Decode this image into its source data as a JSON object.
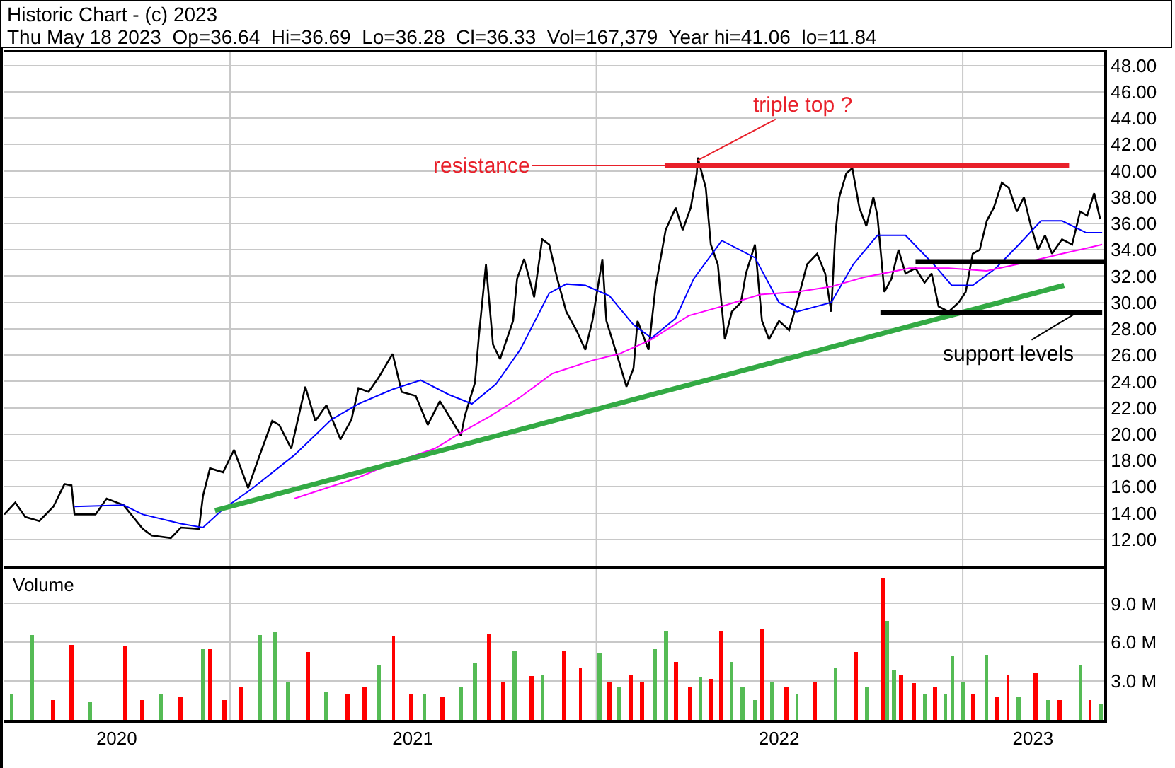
{
  "chart_data": [
    {
      "type": "line",
      "title": "Historic Chart - (c) 2023",
      "subtitle": "Thu May 18 2023  Op=36.64  Hi=36.69  Lo=36.28  Cl=36.33  Vol=167,379  Year hi=41.06  lo=11.84",
      "x": [
        "2020-05-21",
        "2020-06-01",
        "2020-06-11",
        "2020-06-25",
        "2020-07-09",
        "2020-07-20",
        "2020-07-27",
        "2020-07-30",
        "2020-08-20",
        "2020-08-31",
        "2020-09-17",
        "2020-10-06",
        "2020-10-15",
        "2020-11-03",
        "2020-11-13",
        "2020-12-01",
        "2020-12-05",
        "2020-12-12",
        "2020-12-25",
        "2021-01-05",
        "2021-01-19",
        "2021-01-31",
        "2021-02-12",
        "2021-02-19",
        "2021-03-03",
        "2021-03-17",
        "2021-03-27",
        "2021-04-07",
        "2021-04-21",
        "2021-05-02",
        "2021-05-09",
        "2021-05-19",
        "2021-05-29",
        "2021-06-12",
        "2021-06-21",
        "2021-07-05",
        "2021-07-17",
        "2021-07-29",
        "2021-08-07",
        "2021-08-19",
        "2021-08-23",
        "2021-09-02",
        "2021-09-06",
        "2021-09-13",
        "2021-09-20",
        "2021-09-27",
        "2021-10-10",
        "2021-10-14",
        "2021-10-21",
        "2021-10-31",
        "2021-11-08",
        "2021-11-15",
        "2021-11-23",
        "2021-12-02",
        "2021-12-12",
        "2021-12-21",
        "2021-12-28",
        "2022-01-07",
        "2022-01-11",
        "2022-01-24",
        "2022-01-31",
        "2022-02-07",
        "2022-02-11",
        "2022-02-22",
        "2022-03-01",
        "2022-03-11",
        "2022-03-21",
        "2022-03-28",
        "2022-04-05",
        "2022-04-11",
        "2022-04-12",
        "2022-04-20",
        "2022-04-25",
        "2022-05-02",
        "2022-05-09",
        "2022-05-16",
        "2022-05-25",
        "2022-05-30",
        "2022-06-08",
        "2022-06-15",
        "2022-06-22",
        "2022-07-02",
        "2022-07-12",
        "2022-07-20",
        "2022-07-30",
        "2022-08-09",
        "2022-08-17",
        "2022-08-23",
        "2022-08-27",
        "2022-08-31",
        "2022-09-07",
        "2022-09-13",
        "2022-09-20",
        "2022-09-27",
        "2022-10-04",
        "2022-10-08",
        "2022-10-15",
        "2022-10-22",
        "2022-10-29",
        "2022-11-05",
        "2022-11-15",
        "2022-11-24",
        "2022-12-01",
        "2022-12-08",
        "2022-12-18",
        "2022-12-28",
        "2023-01-04",
        "2023-01-11",
        "2023-01-18",
        "2023-01-25",
        "2023-02-01",
        "2023-02-09",
        "2023-02-16",
        "2023-02-24",
        "2023-03-03",
        "2023-03-10",
        "2023-03-17",
        "2023-03-24",
        "2023-03-31",
        "2023-04-10",
        "2023-04-20",
        "2023-04-28",
        "2023-05-05",
        "2023-05-12",
        "2023-05-18"
      ],
      "series": [
        {
          "color": "#000000",
          "values": [
            13.9,
            14.8,
            13.7,
            13.4,
            14.5,
            16.2,
            16.1,
            13.9,
            13.9,
            15.1,
            14.6,
            12.8,
            12.3,
            12.1,
            12.9,
            12.8,
            15.3,
            17.4,
            17.1,
            18.8,
            15.9,
            18.5,
            21.0,
            20.7,
            18.9,
            23.6,
            21.0,
            22.2,
            19.6,
            21.1,
            23.5,
            23.2,
            24.3,
            26.1,
            23.2,
            22.9,
            20.7,
            22.5,
            21.4,
            19.9,
            21.4,
            23.9,
            27.5,
            32.9,
            26.8,
            25.7,
            28.6,
            31.8,
            33.3,
            30.4,
            34.8,
            34.4,
            31.8,
            29.3,
            27.9,
            26.4,
            28.6,
            33.3,
            28.6,
            25.4,
            23.6,
            25.0,
            28.6,
            26.4,
            31.2,
            35.5,
            37.2,
            35.5,
            37.2,
            39.8,
            41.0,
            38.7,
            34.4,
            32.9,
            27.2,
            29.3,
            30.0,
            32.2,
            34.4,
            28.6,
            27.2,
            28.6,
            27.9,
            30.0,
            32.9,
            33.7,
            32.2,
            29.3,
            35.1,
            38.0,
            39.8,
            40.2,
            37.2,
            35.8,
            38.0,
            36.6,
            30.8,
            31.8,
            34.0,
            32.2,
            32.6,
            31.5,
            32.2,
            29.7,
            29.3,
            30.0,
            30.8,
            33.7,
            34.0,
            36.2,
            37.2,
            39.1,
            38.7,
            36.9,
            38.0,
            35.8,
            34.0,
            35.1,
            33.7,
            34.8,
            34.4,
            36.9,
            36.6,
            38.3,
            36.33
          ]
        },
        {
          "type": "line",
          "color": "#0000ff",
          "x": [
            "2020-07-30",
            "2020-09-17",
            "2020-10-06",
            "2020-11-13",
            "2020-12-05",
            "2020-12-25",
            "2021-01-22",
            "2021-03-06",
            "2021-04-12",
            "2021-05-09",
            "2021-06-12",
            "2021-07-10",
            "2021-08-07",
            "2021-08-30",
            "2021-09-23",
            "2021-10-17",
            "2021-11-15",
            "2021-12-02",
            "2021-12-21",
            "2022-01-14",
            "2022-02-07",
            "2022-02-25",
            "2022-03-21",
            "2022-04-08",
            "2022-05-06",
            "2022-06-08",
            "2022-07-02",
            "2022-07-20",
            "2022-08-23",
            "2022-09-14",
            "2022-10-08",
            "2022-11-05",
            "2022-12-03",
            "2022-12-21",
            "2023-01-11",
            "2023-02-03",
            "2023-02-26",
            "2023-03-20",
            "2023-04-10",
            "2023-05-04",
            "2023-05-20"
          ],
          "values": [
            14.5,
            14.6,
            13.9,
            13.2,
            12.9,
            14.3,
            15.8,
            18.4,
            21.1,
            22.3,
            23.4,
            24.1,
            23.0,
            22.3,
            23.8,
            26.4,
            30.7,
            31.4,
            31.3,
            30.5,
            28.3,
            27.3,
            28.8,
            31.8,
            34.7,
            33.4,
            30.0,
            29.3,
            30.0,
            32.9,
            35.1,
            35.1,
            32.9,
            31.3,
            31.3,
            32.6,
            34.4,
            36.2,
            36.2,
            35.3,
            35.3
          ]
        },
        {
          "type": "line",
          "color": "#ff00ff",
          "x": [
            "2021-03-06",
            "2021-05-09",
            "2021-06-12",
            "2021-07-24",
            "2021-08-21",
            "2021-09-18",
            "2021-10-17",
            "2021-11-18",
            "2021-12-28",
            "2022-01-24",
            "2022-02-25",
            "2022-04-03",
            "2022-05-06",
            "2022-06-13",
            "2022-07-20",
            "2022-08-23",
            "2022-09-24",
            "2022-11-09",
            "2022-12-18",
            "2023-01-25",
            "2023-03-03",
            "2023-04-10",
            "2023-05-20"
          ],
          "values": [
            15.1,
            16.7,
            17.8,
            18.9,
            20.2,
            21.4,
            22.8,
            24.6,
            25.6,
            26.1,
            27.2,
            29.0,
            29.7,
            30.6,
            30.8,
            31.2,
            31.9,
            32.6,
            32.6,
            32.4,
            33.0,
            33.7,
            34.4
          ]
        },
        {
          "type": "line",
          "color": "#33aa44",
          "x": [
            "2020-12-17",
            "2023-04-12"
          ],
          "values": [
            14.2,
            31.3
          ]
        },
        {
          "type": "line",
          "color": "#e8202a",
          "x": [
            "2022-03-10",
            "2023-04-17"
          ],
          "values": [
            40.4,
            40.4
          ]
        },
        {
          "type": "line",
          "color": "#000000",
          "x": [
            "2022-11-15",
            "2023-05-22"
          ],
          "values": [
            33.1,
            33.1
          ]
        },
        {
          "type": "line",
          "color": "#000000",
          "x": [
            "2022-10-11",
            "2023-05-20"
          ],
          "values": [
            29.2,
            29.2
          ]
        }
      ],
      "annotations": [
        {
          "text": "resistance",
          "x": "2022-03-10",
          "y": 40.4
        },
        {
          "text": "triple top ?",
          "x": "2022-04-12",
          "y": 40.8
        },
        {
          "text": "support levels",
          "x": "2023-04-24",
          "y": 29.2
        }
      ],
      "xlim": [
        "2020-05-21",
        "2023-05-22"
      ],
      "xticks": [
        {
          "value": "2021-01-01",
          "label": null
        },
        {
          "value": "2022-01-01",
          "label": null
        },
        {
          "value": "2023-01-01",
          "label": null
        }
      ],
      "ylim": [
        10,
        49
      ],
      "yticks": [
        {
          "value": 12,
          "label": "12.00"
        },
        {
          "value": 14,
          "label": "14.00"
        },
        {
          "value": 16,
          "label": "16.00"
        },
        {
          "value": 18,
          "label": "18.00"
        },
        {
          "value": 20,
          "label": "20.00"
        },
        {
          "value": 22,
          "label": "22.00"
        },
        {
          "value": 24,
          "label": "24.00"
        },
        {
          "value": 26,
          "label": "26.00"
        },
        {
          "value": 28,
          "label": "28.00"
        },
        {
          "value": 30,
          "label": "30.00"
        },
        {
          "value": 32,
          "label": "32.00"
        },
        {
          "value": 34,
          "label": "34.00"
        },
        {
          "value": 36,
          "label": "36.00"
        },
        {
          "value": 38,
          "label": "38.00"
        },
        {
          "value": 40,
          "label": "40.00"
        },
        {
          "value": 42,
          "label": "42.00"
        },
        {
          "value": 44,
          "label": "44.00"
        },
        {
          "value": 46,
          "label": "46.00"
        },
        {
          "value": 48,
          "label": "48.00"
        }
      ],
      "grid": true,
      "tick_labels": "y"
    },
    {
      "type": "bar",
      "title": "Volume",
      "x": [
        "2020-05-28",
        "2020-06-18",
        "2020-07-09",
        "2020-07-27",
        "2020-08-14",
        "2020-09-19",
        "2020-10-06",
        "2020-10-24",
        "2020-11-13",
        "2020-12-05",
        "2020-12-12",
        "2020-12-26",
        "2021-01-12",
        "2021-01-31",
        "2021-02-15",
        "2021-02-28",
        "2021-03-20",
        "2021-04-07",
        "2021-04-28",
        "2021-05-15",
        "2021-05-29",
        "2021-06-13",
        "2021-06-30",
        "2021-07-14",
        "2021-07-31",
        "2021-08-19",
        "2021-09-02",
        "2021-09-16",
        "2021-09-30",
        "2021-10-11",
        "2021-10-28",
        "2021-11-08",
        "2021-11-30",
        "2021-12-16",
        "2022-01-04",
        "2022-01-14",
        "2022-01-24",
        "2022-02-04",
        "2022-02-15",
        "2022-02-28",
        "2022-03-11",
        "2022-03-21",
        "2022-04-04",
        "2022-04-15",
        "2022-04-25",
        "2022-05-06",
        "2022-05-16",
        "2022-05-27",
        "2022-06-08",
        "2022-06-15",
        "2022-06-25",
        "2022-07-09",
        "2022-07-20",
        "2022-08-06",
        "2022-08-27",
        "2022-09-17",
        "2022-09-28",
        "2022-10-13",
        "2022-10-18",
        "2022-10-24",
        "2022-11-01",
        "2022-11-13",
        "2022-11-24",
        "2022-12-04",
        "2022-12-15",
        "2022-12-22",
        "2023-01-02",
        "2023-01-12",
        "2023-01-25",
        "2023-02-05",
        "2023-02-15",
        "2023-02-26",
        "2023-03-15",
        "2023-03-27",
        "2023-04-07",
        "2023-04-28",
        "2023-05-08",
        "2023-05-18"
      ],
      "values": [
        2.0,
        6.6,
        1.5,
        5.8,
        1.4,
        5.7,
        1.5,
        2.0,
        1.8,
        5.5,
        5.5,
        1.5,
        2.5,
        6.6,
        6.8,
        3.0,
        5.3,
        2.2,
        2.0,
        2.5,
        4.3,
        6.4,
        2.0,
        2.0,
        1.8,
        2.5,
        4.4,
        6.7,
        3.0,
        5.4,
        3.4,
        3.5,
        5.4,
        4.0,
        5.1,
        3.0,
        2.5,
        3.5,
        3.0,
        5.5,
        6.9,
        4.5,
        2.5,
        3.3,
        3.2,
        6.9,
        4.5,
        2.5,
        1.5,
        7.0,
        3.0,
        2.5,
        2.0,
        3.0,
        4.0,
        5.2,
        2.5,
        10.9,
        7.7,
        3.8,
        3.5,
        2.8,
        2.0,
        2.5,
        2.0,
        4.9,
        3.0,
        2.0,
        5.0,
        1.8,
        3.5,
        1.8,
        3.6,
        1.5,
        1.5,
        4.3,
        1.5,
        1.2
      ],
      "colors": [
        "#55bb55",
        "#55bb55",
        "#ff0000",
        "#ff0000",
        "#55bb55",
        "#ff0000",
        "#ff0000",
        "#55bb55",
        "#ff0000",
        "#55bb55",
        "#ff0000",
        "#ff0000",
        "#ff0000",
        "#55bb55",
        "#55bb55",
        "#55bb55",
        "#ff0000",
        "#55bb55",
        "#ff0000",
        "#ff0000",
        "#55bb55",
        "#ff0000",
        "#ff0000",
        "#55bb55",
        "#ff0000",
        "#55bb55",
        "#55bb55",
        "#ff0000",
        "#ff0000",
        "#55bb55",
        "#ff0000",
        "#55bb55",
        "#ff0000",
        "#ff0000",
        "#55bb55",
        "#ff0000",
        "#55bb55",
        "#ff0000",
        "#ff0000",
        "#55bb55",
        "#55bb55",
        "#ff0000",
        "#ff0000",
        "#55bb55",
        "#ff0000",
        "#ff0000",
        "#55bb55",
        "#55bb55",
        "#55bb55",
        "#ff0000",
        "#55bb55",
        "#ff0000",
        "#55bb55",
        "#ff0000",
        "#55bb55",
        "#ff0000",
        "#55bb55",
        "#ff0000",
        "#55bb55",
        "#55bb55",
        "#ff0000",
        "#ff0000",
        "#55bb55",
        "#ff0000",
        "#55bb55",
        "#55bb55",
        "#55bb55",
        "#ff0000",
        "#55bb55",
        "#ff0000",
        "#ff0000",
        "#55bb55",
        "#ff0000",
        "#55bb55",
        "#ff0000",
        "#55bb55",
        "#ff0000",
        "#55bb55"
      ],
      "xlim": [
        "2020-05-21",
        "2023-05-22"
      ],
      "xticks": [
        {
          "value": "2021-01-01",
          "label": null
        },
        {
          "value": "2022-01-01",
          "label": null
        },
        {
          "value": "2023-01-01",
          "label": null
        },
        {
          "value": "2020-09-10",
          "label": "2020"
        },
        {
          "value": "2021-07-02",
          "label": "2021"
        },
        {
          "value": "2022-07-02",
          "label": "2022"
        },
        {
          "value": "2023-03-12",
          "label": "2023"
        }
      ],
      "ylim": [
        0,
        11.7
      ],
      "yticks": [
        {
          "value": 3,
          "label": "3.0 M"
        },
        {
          "value": 6,
          "label": "6.0 M"
        },
        {
          "value": 9,
          "label": "9.0 M"
        }
      ],
      "grid": true
    }
  ]
}
